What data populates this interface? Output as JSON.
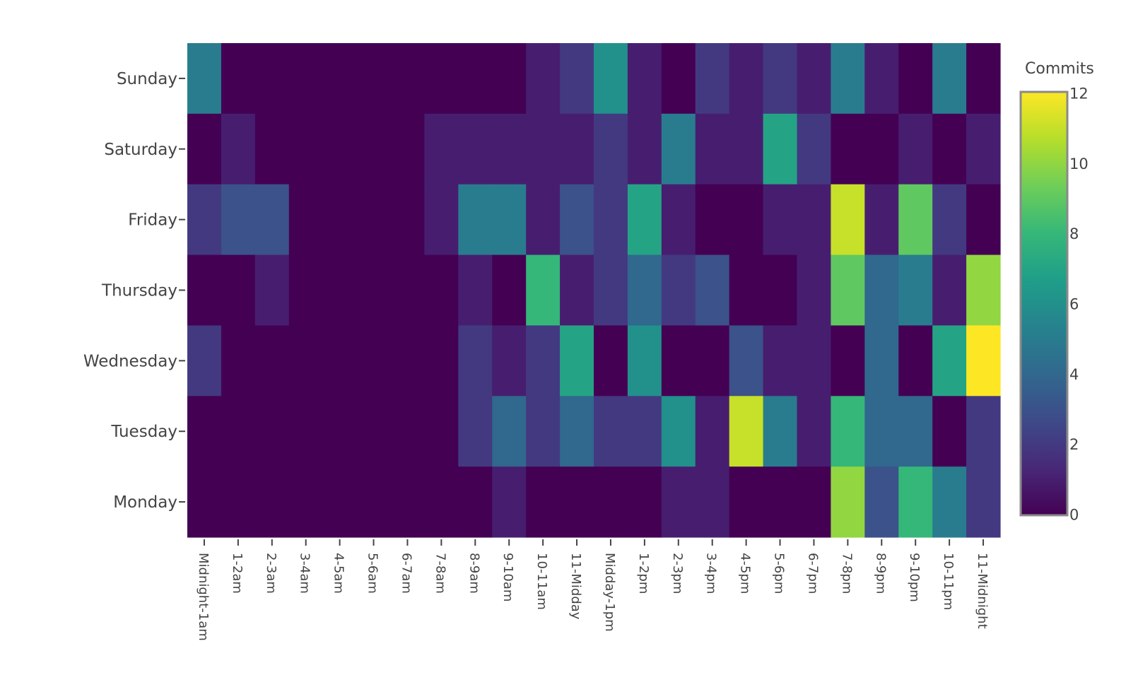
{
  "chart_data": {
    "type": "heatmap",
    "x_categories": [
      "Midnight-1am",
      "1-2am",
      "2-3am",
      "3-4am",
      "4-5am",
      "5-6am",
      "6-7am",
      "7-8am",
      "8-9am",
      "9-10am",
      "10-11am",
      "11-Midday",
      "Midday-1pm",
      "1-2pm",
      "2-3pm",
      "3-4pm",
      "4-5pm",
      "5-6pm",
      "6-7pm",
      "7-8pm",
      "8-9pm",
      "9-10pm",
      "10-11pm",
      "11-Midnight"
    ],
    "y_categories": [
      "Sunday",
      "Saturday",
      "Friday",
      "Thursday",
      "Wednesday",
      "Tuesday",
      "Monday"
    ],
    "z": [
      [
        5,
        0,
        0,
        0,
        0,
        0,
        0,
        0,
        0,
        0,
        1,
        2,
        6,
        1,
        0,
        2,
        1,
        2,
        1,
        5,
        1,
        0,
        5,
        0
      ],
      [
        0,
        1,
        0,
        0,
        0,
        0,
        0,
        1,
        1,
        1,
        1,
        1,
        2,
        1,
        5,
        1,
        1,
        7,
        2,
        0,
        0,
        1,
        0,
        1
      ],
      [
        2,
        3,
        3,
        0,
        0,
        0,
        0,
        1,
        5,
        5,
        1,
        3,
        2,
        7,
        1,
        0,
        0,
        1,
        1,
        11,
        1,
        9,
        2,
        0
      ],
      [
        0,
        0,
        1,
        0,
        0,
        0,
        0,
        0,
        1,
        0,
        8,
        1,
        2,
        4,
        2,
        3,
        0,
        0,
        1,
        9,
        4,
        5,
        1,
        10
      ],
      [
        2,
        0,
        0,
        0,
        0,
        0,
        0,
        0,
        2,
        1,
        2,
        7,
        0,
        6,
        0,
        0,
        3,
        1,
        1,
        0,
        4,
        0,
        7,
        12
      ],
      [
        0,
        0,
        0,
        0,
        0,
        0,
        0,
        0,
        2,
        4,
        2,
        4,
        2,
        2,
        6,
        1,
        11,
        5,
        1,
        8,
        4,
        4,
        0,
        2
      ],
      [
        0,
        0,
        0,
        0,
        0,
        0,
        0,
        0,
        0,
        1,
        0,
        0,
        0,
        0,
        1,
        1,
        0,
        0,
        0,
        10,
        3,
        8,
        5,
        2
      ]
    ],
    "zmin": 0,
    "zmax": 12,
    "colorscale": "viridis",
    "colorbar": {
      "title": "Commits",
      "ticks": [
        "0",
        "2",
        "4",
        "6",
        "8",
        "10",
        "12"
      ]
    }
  }
}
